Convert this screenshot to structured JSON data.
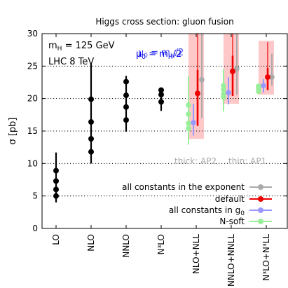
{
  "chart_data": {
    "type": "scatter",
    "title": "Higgs cross section: gluon fusion",
    "ylabel": "σ [pb]",
    "ylim": [
      0,
      30
    ],
    "yticks": [
      0,
      5,
      10,
      15,
      20,
      25,
      30
    ],
    "grid_y": [
      5,
      10,
      15,
      20,
      25
    ],
    "categories": [
      "LO",
      "NLO",
      "NNLO",
      "N³LO",
      "NLO+NLL",
      "NNLO+NNLL",
      "N³LO+N³LL"
    ],
    "annotations": {
      "mass": "m",
      "mass_sub": "H",
      "mass_rest": " = 125 GeV",
      "collider": "LHC 8 TeV",
      "mu_label": "μ",
      "mu_sub": "0",
      "mu_rest": " = m",
      "mu_sub2": "H",
      "mu_tail": "/2",
      "thick": "thick: AP2",
      "thin": "thin: AP1"
    },
    "colors": {
      "fixed_order": "#000000",
      "exponent": "#aaaaaa",
      "default": "#ee0000",
      "g0": "#9999ff",
      "nsoft": "#99ee99",
      "band": "#ffc8c8",
      "mu_label": "#0000ee"
    },
    "fixed_order": [
      {
        "category": "LO",
        "points": [
          5.0,
          6.0,
          7.3,
          8.9
        ],
        "range": [
          4.0,
          11.7
        ],
        "dotted_to": 5.0
      },
      {
        "category": "NLO",
        "points": [
          11.8,
          13.8,
          16.4,
          19.9
        ],
        "range": [
          10.0,
          25.3
        ]
      },
      {
        "category": "NNLO",
        "points": [
          16.7,
          18.7,
          20.5,
          22.6
        ],
        "range": [
          14.9,
          23.5
        ]
      },
      {
        "category": "N³LO",
        "points": [
          19.5,
          20.6,
          21.3
        ],
        "range": [
          18.1,
          21.7
        ]
      }
    ],
    "resummed": [
      {
        "category": "NLO+NLL",
        "band": [
          13.8,
          30.0
        ],
        "exponent": {
          "value": 22.9,
          "range": [
            17.0,
            30.0
          ]
        },
        "default": {
          "value": 20.8,
          "range": [
            17.7,
            30.0
          ],
          "thick": [
            15.8,
            24.4
          ]
        },
        "g0": {
          "value": 16.3,
          "range": [
            14.3,
            19.2
          ]
        },
        "nsoft": {
          "points": [
            15.4,
            16.2,
            17.6,
            19.0
          ],
          "range": [
            12.9,
            23.5
          ]
        }
      },
      {
        "category": "NNLO+NNLL",
        "band": [
          19.2,
          30.0
        ],
        "exponent": {
          "value": 24.6,
          "range": [
            20.6,
            30.0
          ]
        },
        "default": {
          "value": 24.2,
          "range": [
            21.9,
            30.0
          ],
          "thick": [
            20.4,
            26.6
          ]
        },
        "g0": {
          "value": 20.9,
          "range": [
            19.1,
            23.3
          ]
        },
        "nsoft": {
          "points": [
            20.2,
            20.7,
            21.4,
            22.0
          ],
          "range": [
            18.0,
            24.5
          ]
        }
      },
      {
        "category": "N³LO+N³LL",
        "band": [
          20.6,
          28.9
        ],
        "exponent": {
          "value": 23.3,
          "range": [
            22.0,
            26.9
          ]
        },
        "default": {
          "value": 23.3,
          "range": [
            21.6,
            28.7
          ],
          "thick": [
            21.3,
            24.7
          ]
        },
        "g0": {
          "value": 22.0,
          "range": [
            20.9,
            23.0
          ]
        },
        "nsoft": {
          "points": [
            21.1,
            21.4,
            21.7,
            21.9
          ],
          "range": [
            20.9,
            22.2
          ]
        }
      }
    ],
    "legend": {
      "placement": "bottom-right",
      "entries": [
        {
          "key": "exponent",
          "label": "all constants in the exponent"
        },
        {
          "key": "default",
          "label": "default"
        },
        {
          "key": "g0",
          "label": "all constants in g",
          "label_sub": "0"
        },
        {
          "key": "nsoft",
          "label": "N-soft"
        }
      ]
    }
  }
}
